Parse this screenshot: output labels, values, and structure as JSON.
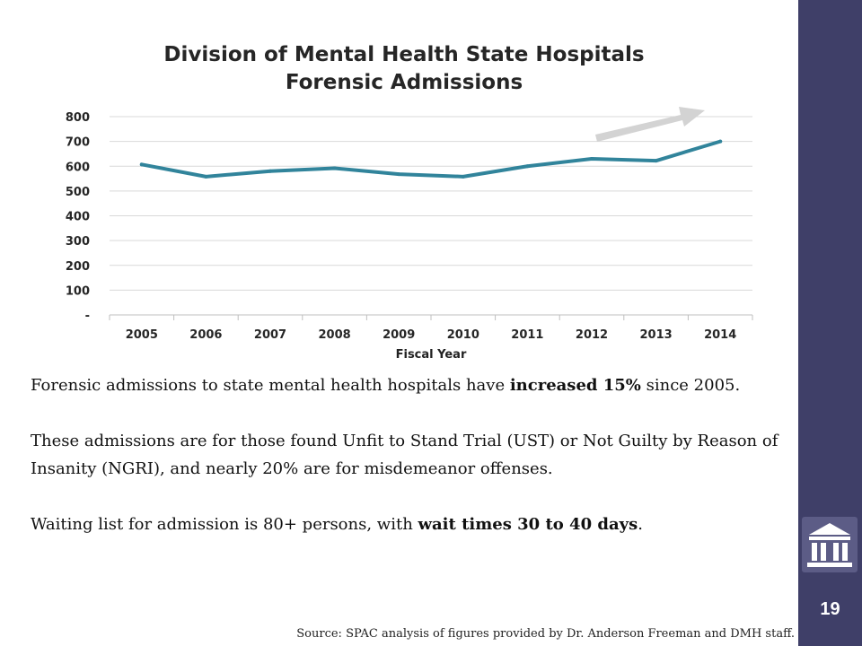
{
  "chart_data": {
    "type": "line",
    "title_line1": "Division of Mental Health State Hospitals",
    "title_line2": "Forensic Admissions",
    "xlabel": "Fiscal Year",
    "ylabel": "",
    "categories": [
      "2005",
      "2006",
      "2007",
      "2008",
      "2009",
      "2010",
      "2011",
      "2012",
      "2013",
      "2014"
    ],
    "series": [
      {
        "values": [
          607,
          558,
          580,
          592,
          568,
          558,
          600,
          630,
          622,
          700
        ]
      }
    ],
    "ylim": [
      0,
      800
    ],
    "yticks": [
      0,
      100,
      200,
      300,
      400,
      500,
      600,
      700,
      800
    ],
    "ytick_labels": [
      "-",
      "100",
      "200",
      "300",
      "400",
      "500",
      "600",
      "700",
      "800"
    ],
    "grid": true,
    "line_color": "#31849b",
    "annotation": "upward-trend-arrow"
  },
  "text": {
    "p1_a": "Forensic admissions to state mental health hospitals have ",
    "p1_bold": "increased 15%",
    "p1_b": " since 2005.",
    "p2": "These admissions are for those found Unfit to Stand Trial (UST) or Not Guilty by Reason of Insanity (NGRI), and nearly 20% are for misdemeanor offenses.",
    "p3_a": "Waiting list for admission is 80+ persons, with ",
    "p3_bold": "wait times 30 to 40 days",
    "p3_b": ".",
    "source": "Source: SPAC analysis of figures provided by Dr. Anderson Freeman and DMH staff."
  },
  "sidebar": {
    "page_number": "19",
    "icon": "building-columns-icon",
    "color": "#3f3f68"
  }
}
